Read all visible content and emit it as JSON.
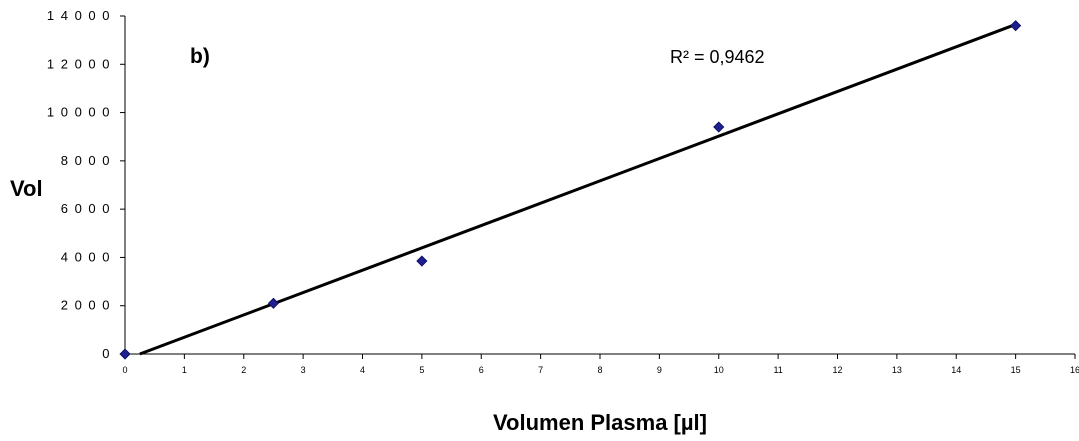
{
  "chart_data": {
    "type": "scatter",
    "panel_label": "b)",
    "xlabel": "Volumen Plasma [µl]",
    "ylabel": "Vol",
    "xlim": [
      0,
      16
    ],
    "ylim": [
      0,
      14000
    ],
    "x_ticks": [
      "0",
      "1",
      "2",
      "3",
      "4",
      "5",
      "6",
      "7",
      "8",
      "9",
      "10",
      "11",
      "12",
      "13",
      "14",
      "15",
      "16"
    ],
    "y_ticks": [
      "0",
      "2 0 0 0",
      "4 0 0 0",
      "6 0 0 0",
      "8 0 0 0",
      "1 0 0 0 0",
      "1 2 0 0 0",
      "1 4 0 0 0"
    ],
    "y_tick_values": [
      0,
      2000,
      4000,
      6000,
      8000,
      10000,
      12000,
      14000
    ],
    "series": [
      {
        "x": [
          0,
          2.5,
          5,
          10,
          15
        ],
        "y": [
          0,
          2100,
          3850,
          9400,
          13600
        ],
        "marker": "diamond",
        "color": "#1f1f8f"
      }
    ],
    "trendline": {
      "type": "linear",
      "x": [
        0.25,
        15
      ],
      "y": [
        0,
        13650
      ],
      "color": "#000000",
      "r_squared_label": "R² = 0,9462"
    },
    "grid": false,
    "legend": "none"
  }
}
